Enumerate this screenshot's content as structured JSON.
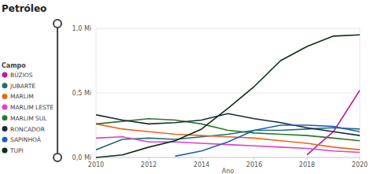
{
  "chart_data": {
    "type": "line",
    "title": "Petróleo",
    "legend_title": "Campo",
    "x_label": "Ano",
    "x": [
      2010,
      2011,
      2012,
      2013,
      2014,
      2015,
      2016,
      2017,
      2018,
      2019,
      2020
    ],
    "xlim": [
      2010,
      2020
    ],
    "xticks": [
      2010,
      2012,
      2014,
      2016,
      2018,
      2020
    ],
    "ylim": [
      0,
      1.0
    ],
    "yticks": [
      {
        "value": 0,
        "label": "0,0 Mi"
      },
      {
        "value": 0.5,
        "label": "0,5 Mi"
      },
      {
        "value": 1.0,
        "label": "1,0 Mi"
      }
    ],
    "grid": true,
    "legend": "left",
    "series": [
      {
        "name": "BÚZIOS",
        "color": "#c2189b",
        "values": [
          null,
          null,
          null,
          null,
          null,
          null,
          null,
          null,
          0.02,
          0.2,
          0.52
        ]
      },
      {
        "name": "JUBARTE",
        "color": "#1f6f78",
        "values": [
          0.06,
          0.14,
          0.15,
          0.14,
          0.16,
          0.18,
          0.21,
          0.21,
          0.22,
          0.23,
          0.22
        ]
      },
      {
        "name": "MARLIM",
        "color": "#e8671b",
        "values": [
          0.26,
          0.22,
          0.2,
          0.18,
          0.17,
          0.16,
          0.15,
          0.13,
          0.11,
          0.08,
          0.06
        ]
      },
      {
        "name": "MARLIM LESTE",
        "color": "#e040c8",
        "values": [
          0.15,
          0.16,
          0.12,
          0.12,
          0.11,
          0.1,
          0.09,
          0.08,
          0.07,
          0.05,
          0.04
        ]
      },
      {
        "name": "MARLIM SUL",
        "color": "#2a7a2a",
        "values": [
          0.26,
          0.28,
          0.3,
          0.29,
          0.26,
          0.21,
          0.19,
          0.18,
          0.17,
          0.15,
          0.13
        ]
      },
      {
        "name": "RONCADOR",
        "color": "#1a2a3a",
        "values": [
          0.33,
          0.29,
          0.26,
          0.27,
          0.29,
          0.34,
          0.3,
          0.27,
          0.23,
          0.2,
          0.17
        ]
      },
      {
        "name": "SAPINHOÁ",
        "color": "#1f5fbf",
        "values": [
          null,
          null,
          null,
          0.01,
          0.05,
          0.12,
          0.21,
          0.25,
          0.25,
          0.24,
          0.2
        ]
      },
      {
        "name": "TUPI",
        "color": "#0f2e14",
        "values": [
          0.0,
          0.02,
          0.08,
          0.13,
          0.22,
          0.38,
          0.55,
          0.75,
          0.86,
          0.94,
          0.95
        ]
      }
    ]
  }
}
